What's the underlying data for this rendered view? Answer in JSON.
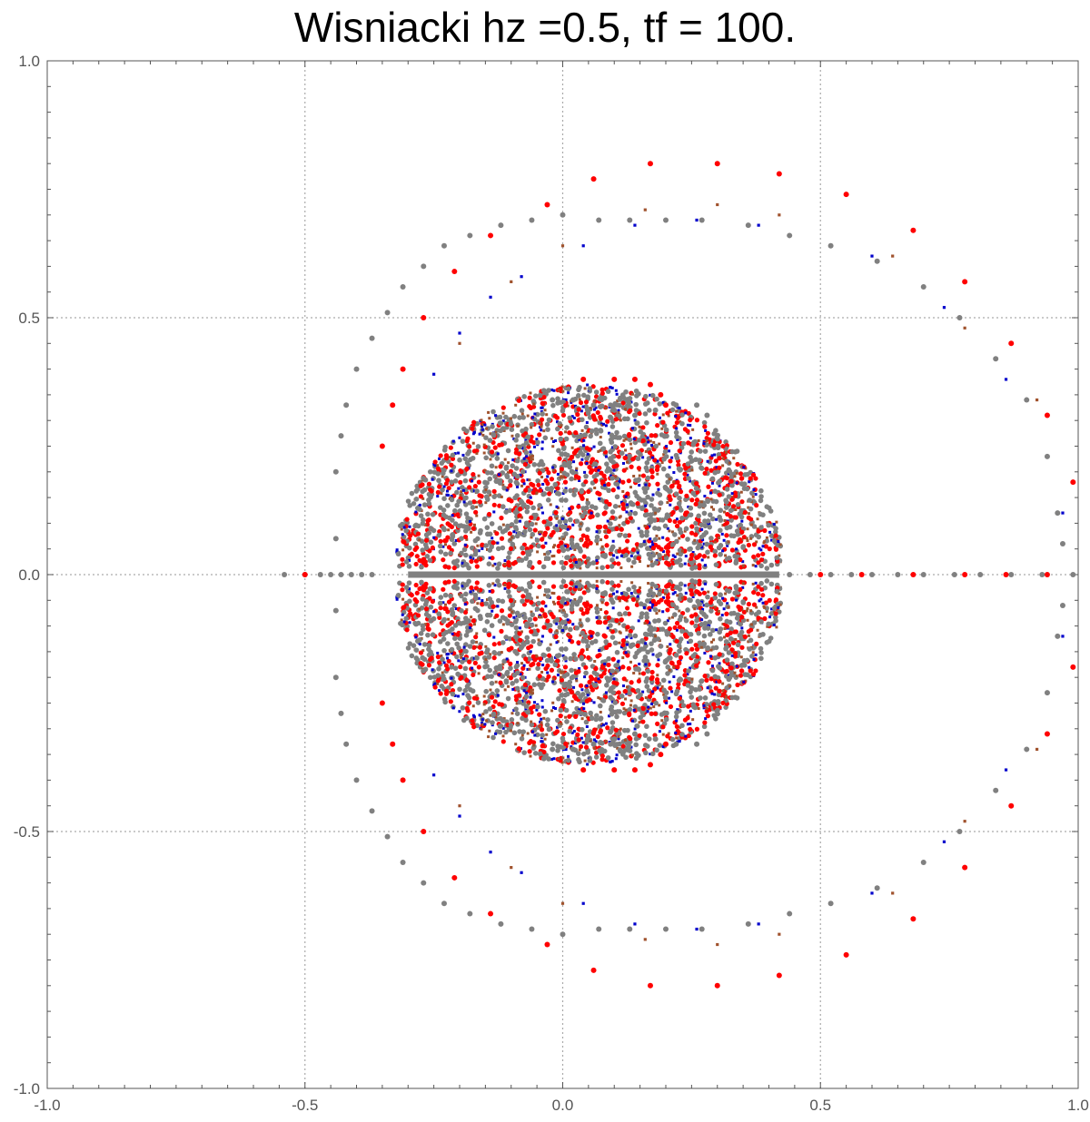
{
  "chart_data": {
    "type": "scatter",
    "title": "Wisniacki hz =0.5, tf = 100.",
    "xlabel": "",
    "ylabel": "",
    "xlim": [
      -1.0,
      1.0
    ],
    "ylim": [
      -1.0,
      1.0
    ],
    "grid": true,
    "legend": "none",
    "x_tick_labels": [
      "-1.0",
      "-0.5",
      "0.0",
      "0.5",
      "1.0"
    ],
    "y_tick_labels": [
      "-1.0",
      "-0.5",
      "0.0",
      "0.5",
      "1.0"
    ],
    "colors": {
      "gray": "#808080",
      "red": "#ff0000",
      "blue": "#0000cc",
      "brown": "#a0522d",
      "grid": "#aaaaaa",
      "axis": "#555555"
    },
    "series": [
      {
        "color": "#808080",
        "marker": "circle",
        "points": [
          [
            -0.54,
            0.0
          ],
          [
            -0.5,
            0.0
          ],
          [
            -0.47,
            0.0
          ],
          [
            -0.45,
            0.0
          ],
          [
            -0.43,
            0.0
          ],
          [
            -0.41,
            0.0
          ],
          [
            -0.39,
            0.0
          ],
          [
            -0.37,
            0.0
          ],
          [
            -0.44,
            0.07
          ],
          [
            -0.44,
            -0.07
          ],
          [
            -0.44,
            0.2
          ],
          [
            -0.44,
            -0.2
          ],
          [
            -0.43,
            0.27
          ],
          [
            -0.43,
            -0.27
          ],
          [
            -0.42,
            0.33
          ],
          [
            -0.42,
            -0.33
          ],
          [
            -0.4,
            0.4
          ],
          [
            -0.4,
            -0.4
          ],
          [
            -0.37,
            0.46
          ],
          [
            -0.37,
            -0.46
          ],
          [
            -0.34,
            0.51
          ],
          [
            -0.34,
            -0.51
          ],
          [
            -0.31,
            0.56
          ],
          [
            -0.31,
            -0.56
          ],
          [
            -0.27,
            0.6
          ],
          [
            -0.27,
            -0.6
          ],
          [
            -0.23,
            0.64
          ],
          [
            -0.23,
            -0.64
          ],
          [
            -0.18,
            0.66
          ],
          [
            -0.18,
            -0.66
          ],
          [
            -0.12,
            0.68
          ],
          [
            -0.12,
            -0.68
          ],
          [
            -0.06,
            0.69
          ],
          [
            -0.06,
            -0.69
          ],
          [
            0.0,
            0.7
          ],
          [
            0.0,
            -0.7
          ],
          [
            0.07,
            0.69
          ],
          [
            0.07,
            -0.69
          ],
          [
            0.13,
            0.69
          ],
          [
            0.13,
            -0.69
          ],
          [
            0.2,
            0.69
          ],
          [
            0.2,
            -0.69
          ],
          [
            0.27,
            0.69
          ],
          [
            0.27,
            -0.69
          ],
          [
            0.36,
            0.68
          ],
          [
            0.36,
            -0.68
          ],
          [
            0.44,
            0.66
          ],
          [
            0.44,
            -0.66
          ],
          [
            0.52,
            0.64
          ],
          [
            0.52,
            -0.64
          ],
          [
            0.61,
            0.61
          ],
          [
            0.61,
            -0.61
          ],
          [
            0.7,
            0.56
          ],
          [
            0.7,
            -0.56
          ],
          [
            0.77,
            0.5
          ],
          [
            0.77,
            -0.5
          ],
          [
            0.84,
            0.42
          ],
          [
            0.84,
            -0.42
          ],
          [
            0.9,
            0.34
          ],
          [
            0.9,
            -0.34
          ],
          [
            0.94,
            0.23
          ],
          [
            0.94,
            -0.23
          ],
          [
            0.96,
            0.12
          ],
          [
            0.96,
            -0.12
          ],
          [
            0.97,
            0.06
          ],
          [
            0.97,
            -0.06
          ],
          [
            0.99,
            0.0
          ],
          [
            0.93,
            0.0
          ],
          [
            0.87,
            0.0
          ],
          [
            0.81,
            0.0
          ],
          [
            0.76,
            0.0
          ],
          [
            0.7,
            0.0
          ],
          [
            0.65,
            0.0
          ],
          [
            0.6,
            0.0
          ],
          [
            0.56,
            0.0
          ],
          [
            0.52,
            0.0
          ],
          [
            0.48,
            0.0
          ],
          [
            0.44,
            0.0
          ],
          [
            -0.02,
            0.34
          ],
          [
            0.02,
            0.34
          ],
          [
            0.06,
            0.33
          ],
          [
            0.1,
            0.32
          ],
          [
            0.14,
            0.31
          ],
          [
            0.18,
            0.32
          ],
          [
            0.22,
            0.33
          ],
          [
            0.26,
            0.33
          ],
          [
            0.28,
            0.31
          ],
          [
            -0.02,
            -0.34
          ],
          [
            0.02,
            -0.34
          ],
          [
            0.06,
            -0.33
          ],
          [
            0.1,
            -0.32
          ],
          [
            0.14,
            -0.31
          ],
          [
            0.18,
            -0.32
          ],
          [
            0.22,
            -0.33
          ],
          [
            0.26,
            -0.33
          ],
          [
            0.28,
            -0.31
          ]
        ]
      },
      {
        "color": "#ff0000",
        "marker": "circle",
        "points": [
          [
            -0.03,
            0.72
          ],
          [
            0.06,
            0.77
          ],
          [
            0.17,
            0.8
          ],
          [
            0.3,
            0.8
          ],
          [
            0.42,
            0.78
          ],
          [
            0.55,
            0.74
          ],
          [
            0.68,
            0.67
          ],
          [
            0.78,
            0.57
          ],
          [
            0.87,
            0.45
          ],
          [
            0.94,
            0.31
          ],
          [
            0.99,
            0.18
          ],
          [
            -0.03,
            -0.72
          ],
          [
            0.06,
            -0.77
          ],
          [
            0.17,
            -0.8
          ],
          [
            0.3,
            -0.8
          ],
          [
            0.42,
            -0.78
          ],
          [
            0.55,
            -0.74
          ],
          [
            0.68,
            -0.67
          ],
          [
            0.78,
            -0.57
          ],
          [
            0.87,
            -0.45
          ],
          [
            0.94,
            -0.31
          ],
          [
            0.99,
            -0.18
          ],
          [
            -0.14,
            0.66
          ],
          [
            -0.21,
            0.59
          ],
          [
            -0.27,
            0.5
          ],
          [
            -0.31,
            0.4
          ],
          [
            -0.33,
            0.33
          ],
          [
            -0.35,
            0.25
          ],
          [
            -0.14,
            -0.66
          ],
          [
            -0.21,
            -0.59
          ],
          [
            -0.27,
            -0.5
          ],
          [
            -0.31,
            -0.4
          ],
          [
            -0.33,
            -0.33
          ],
          [
            -0.35,
            -0.25
          ],
          [
            0.04,
            0.38
          ],
          [
            0.1,
            0.38
          ],
          [
            0.14,
            0.38
          ],
          [
            0.17,
            0.37
          ],
          [
            0.19,
            0.35
          ],
          [
            0.2,
            0.33
          ],
          [
            0.04,
            -0.38
          ],
          [
            0.1,
            -0.38
          ],
          [
            0.14,
            -0.38
          ],
          [
            0.17,
            -0.37
          ],
          [
            0.19,
            -0.35
          ],
          [
            0.2,
            -0.33
          ],
          [
            0.5,
            0.0
          ],
          [
            0.58,
            0.0
          ],
          [
            0.68,
            0.0
          ],
          [
            0.78,
            0.0
          ],
          [
            0.86,
            0.0
          ],
          [
            0.94,
            0.0
          ],
          [
            -0.5,
            0.0
          ]
        ]
      },
      {
        "color": "#0000cc",
        "marker": "square",
        "points": [
          [
            0.04,
            0.64
          ],
          [
            0.14,
            0.68
          ],
          [
            0.26,
            0.69
          ],
          [
            0.38,
            0.68
          ],
          [
            0.6,
            0.62
          ],
          [
            0.74,
            0.52
          ],
          [
            0.86,
            0.38
          ],
          [
            0.97,
            0.12
          ],
          [
            0.04,
            -0.64
          ],
          [
            0.14,
            -0.68
          ],
          [
            0.26,
            -0.69
          ],
          [
            0.38,
            -0.68
          ],
          [
            0.6,
            -0.62
          ],
          [
            0.74,
            -0.52
          ],
          [
            0.86,
            -0.38
          ],
          [
            0.97,
            -0.12
          ],
          [
            -0.08,
            0.58
          ],
          [
            -0.14,
            0.54
          ],
          [
            -0.2,
            0.47
          ],
          [
            -0.25,
            0.39
          ],
          [
            -0.08,
            -0.58
          ],
          [
            -0.14,
            -0.54
          ],
          [
            -0.2,
            -0.47
          ],
          [
            -0.25,
            -0.39
          ]
        ]
      },
      {
        "color": "#a0522d",
        "marker": "square",
        "points": [
          [
            0.0,
            0.64
          ],
          [
            0.16,
            0.71
          ],
          [
            0.3,
            0.72
          ],
          [
            0.42,
            0.7
          ],
          [
            0.64,
            0.62
          ],
          [
            0.78,
            0.48
          ],
          [
            0.92,
            0.34
          ],
          [
            0.0,
            -0.64
          ],
          [
            0.16,
            -0.71
          ],
          [
            0.3,
            -0.72
          ],
          [
            0.42,
            -0.7
          ],
          [
            0.64,
            -0.62
          ],
          [
            0.78,
            -0.48
          ],
          [
            0.92,
            -0.34
          ],
          [
            -0.1,
            0.57
          ],
          [
            -0.2,
            0.45
          ],
          [
            -0.1,
            -0.57
          ],
          [
            -0.2,
            -0.45
          ]
        ]
      }
    ],
    "cloud": {
      "description_free": true,
      "center": [
        0.05,
        0.0
      ],
      "radius_x": 0.38,
      "radius_y": 0.37
    }
  }
}
